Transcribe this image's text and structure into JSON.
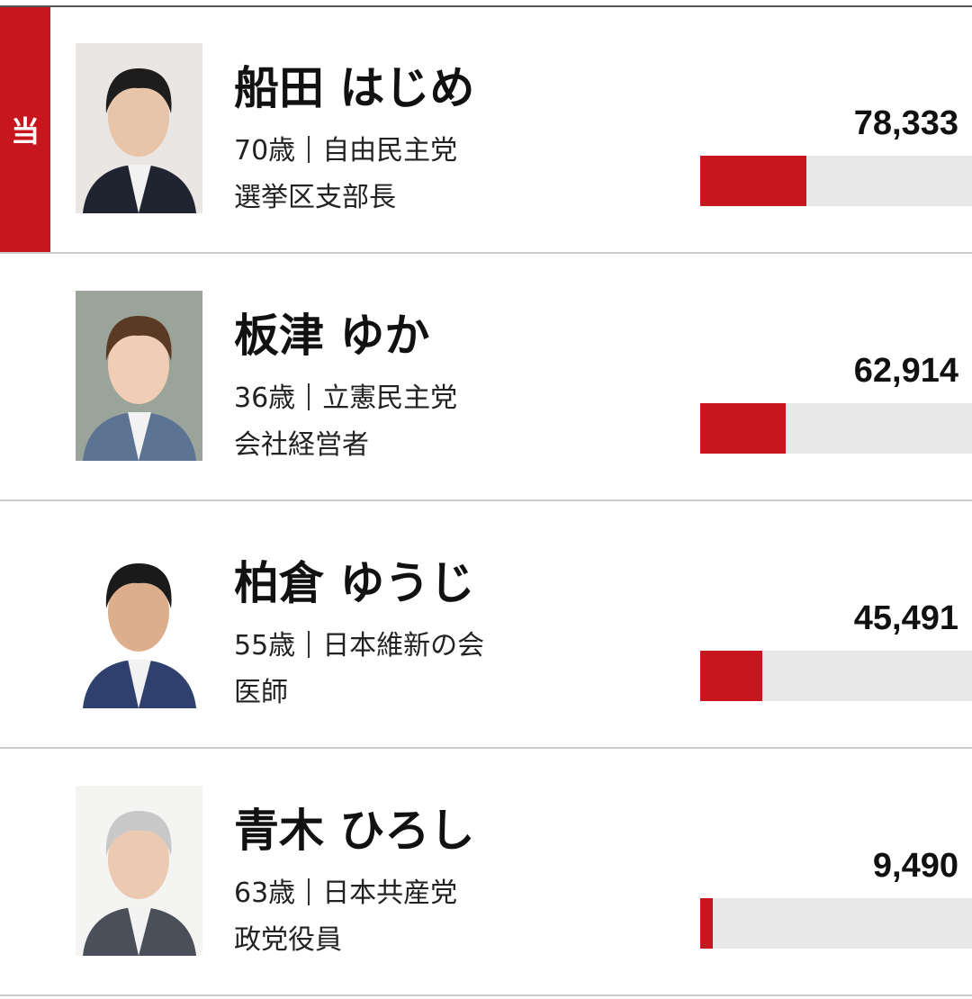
{
  "results": {
    "xlim": [
      0,
      200000
    ],
    "candidates": [
      {
        "badge": "当",
        "name": "船田 はじめ",
        "age": "70歳",
        "party": "自由民主党",
        "occupation": "選挙区支部長",
        "votes": 78333,
        "votes_label": "78,333"
      },
      {
        "name": "板津 ゆか",
        "age": "36歳",
        "party": "立憲民主党",
        "occupation": "会社経営者",
        "votes": 62914,
        "votes_label": "62,914"
      },
      {
        "name": "柏倉 ゆうじ",
        "age": "55歳",
        "party": "日本維新の会",
        "occupation": "医師",
        "votes": 45491,
        "votes_label": "45,491"
      },
      {
        "name": "青木 ひろし",
        "age": "63歳",
        "party": "日本共産党",
        "occupation": "政党役員",
        "votes": 9490,
        "votes_label": "9,490"
      }
    ]
  }
}
